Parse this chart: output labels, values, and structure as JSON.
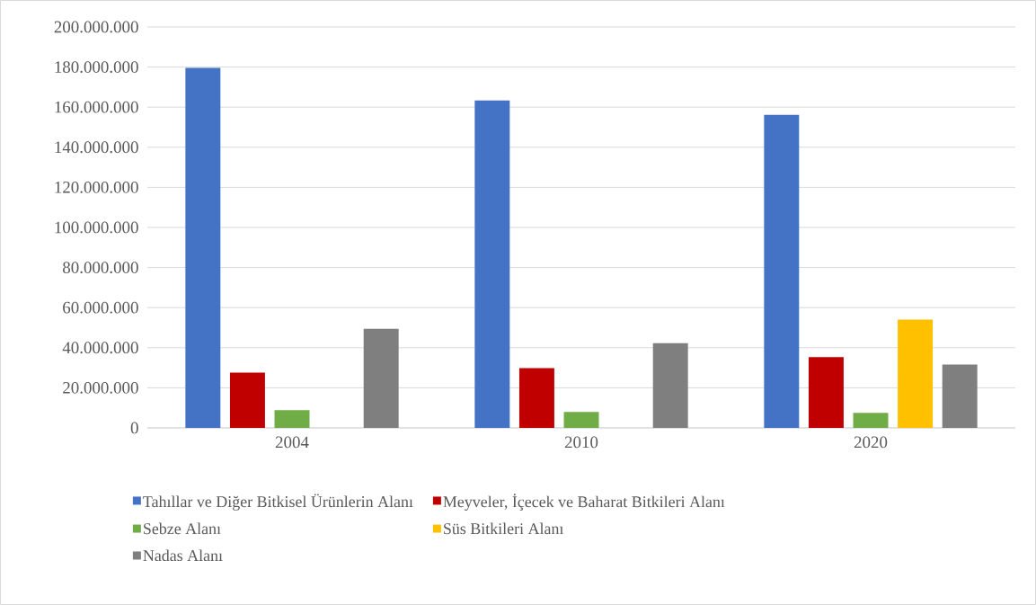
{
  "chart_data": {
    "type": "bar",
    "categories": [
      "2004",
      "2010",
      "2020"
    ],
    "series": [
      {
        "name": "Tahıllar ve Diğer Bitkisel Ürünlerin Alanı",
        "color": "#4472c4",
        "values": [
          179600000,
          163300000,
          156200000
        ]
      },
      {
        "name": "Meyveler, İçecek ve Baharat Bitkileri Alanı",
        "color": "#c00000",
        "values": [
          27600000,
          29800000,
          35300000
        ]
      },
      {
        "name": "Sebze Alanı",
        "color": "#70ad47",
        "values": [
          8800000,
          7900000,
          7500000
        ]
      },
      {
        "name": "Süs Bitkileri Alanı",
        "color": "#ffc000",
        "values": [
          null,
          null,
          54000000
        ]
      },
      {
        "name": "Nadas Alanı",
        "color": "#7f7f7f",
        "values": [
          49400000,
          42300000,
          31600000
        ]
      }
    ],
    "ylim": [
      0,
      200000000
    ],
    "yticks": [
      0,
      {
        "value": 20000000,
        "label": "20.000.000"
      },
      {
        "value": 40000000,
        "label": "40.000.000"
      },
      {
        "value": 60000000,
        "label": "60.000.000"
      },
      {
        "value": 80000000,
        "label": "80.000.000"
      },
      {
        "value": 100000000,
        "label": "100.000.000"
      },
      {
        "value": 120000000,
        "label": "120.000.000"
      },
      {
        "value": 140000000,
        "label": "140.000.000"
      },
      {
        "value": 160000000,
        "label": "160.000.000"
      },
      {
        "value": 180000000,
        "label": "180.000.000"
      },
      {
        "value": 200000000,
        "label": "200.000.000"
      }
    ],
    "grid": "y",
    "legend": "bottom"
  }
}
